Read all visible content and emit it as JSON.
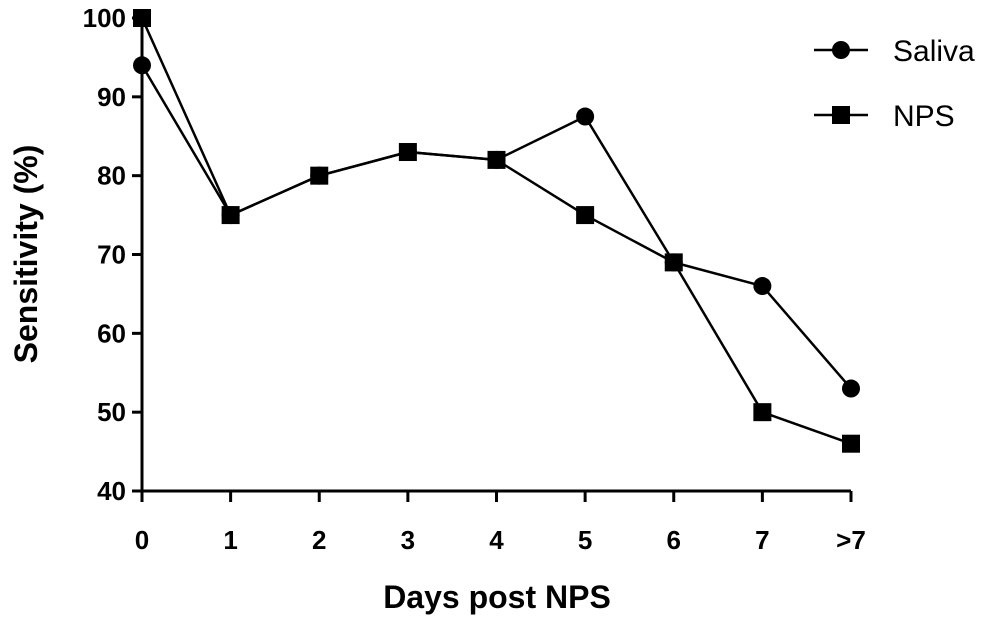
{
  "chart_data": {
    "type": "line",
    "categories": [
      "0",
      "1",
      "2",
      "3",
      "4",
      "5",
      "6",
      "7",
      ">7"
    ],
    "series": [
      {
        "name": "Saliva",
        "marker": "circle",
        "values": [
          94,
          75,
          80,
          83,
          82,
          87.5,
          69,
          66,
          53
        ]
      },
      {
        "name": "NPS",
        "marker": "square",
        "values": [
          100,
          75,
          80,
          83,
          82,
          75,
          69,
          50,
          46
        ]
      }
    ],
    "title": "",
    "xlabel": "Days post NPS",
    "ylabel": "Sensitivity (%)",
    "ylim": [
      40,
      100
    ],
    "yticks": [
      40,
      50,
      60,
      70,
      80,
      90,
      100
    ],
    "grid": false,
    "legend_position": "top-right",
    "colors": {
      "line": "#000000",
      "marker": "#000000"
    }
  }
}
